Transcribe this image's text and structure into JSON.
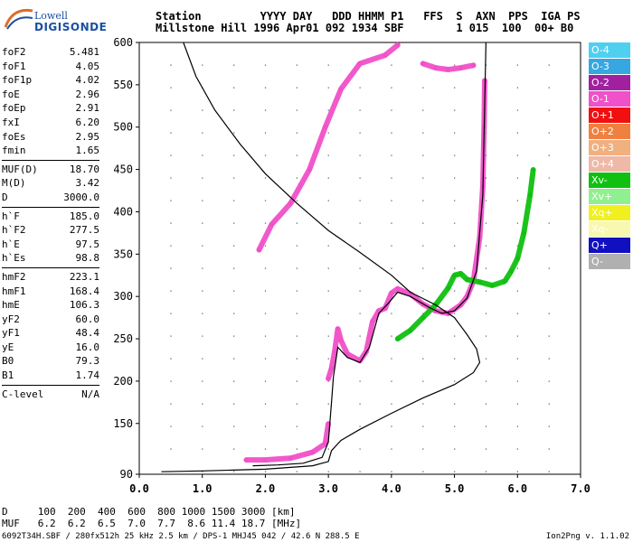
{
  "logo": {
    "line1": "Lowell",
    "line2": "DIGISONDE"
  },
  "header": {
    "row1": "Station         YYYY DAY   DDD HHMM P1   FFS  S  AXN  PPS  IGA PS",
    "row2": "Millstone Hill 1996 Apr01 092 1934 SBF        1 015  100  00+ B0"
  },
  "params": [
    {
      "k": "foF2",
      "v": "5.481"
    },
    {
      "k": "foF1",
      "v": "4.05"
    },
    {
      "k": "foF1p",
      "v": "4.02"
    },
    {
      "k": "foE",
      "v": "2.96"
    },
    {
      "k": "foEp",
      "v": "2.91"
    },
    {
      "k": "fxI",
      "v": "6.20"
    },
    {
      "k": "foEs",
      "v": "2.95"
    },
    {
      "k": "fmin",
      "v": "1.65"
    },
    {
      "sep": true
    },
    {
      "k": "MUF(D)",
      "v": "18.70"
    },
    {
      "k": "M(D)",
      "v": "3.42"
    },
    {
      "k": "D",
      "v": "3000.0"
    },
    {
      "sep": true
    },
    {
      "k": "h`F",
      "v": "185.0"
    },
    {
      "k": "h`F2",
      "v": "277.5"
    },
    {
      "k": "h`E",
      "v": "97.5"
    },
    {
      "k": "h`Es",
      "v": "98.8"
    },
    {
      "sep": true
    },
    {
      "k": "hmF2",
      "v": "223.1"
    },
    {
      "k": "hmF1",
      "v": "168.4"
    },
    {
      "k": "hmE",
      "v": "106.3"
    },
    {
      "k": "yF2",
      "v": "60.0"
    },
    {
      "k": "yF1",
      "v": "48.4"
    },
    {
      "k": "yE",
      "v": "16.0"
    },
    {
      "k": "B0",
      "v": "79.3"
    },
    {
      "k": "B1",
      "v": "1.74"
    },
    {
      "sep": true
    },
    {
      "k": "C-level",
      "v": "N/A"
    }
  ],
  "legend": [
    {
      "label": "O-4",
      "color": "#4fd0f0"
    },
    {
      "label": "O-3",
      "color": "#36a7e0"
    },
    {
      "label": "O-2",
      "color": "#a020a0"
    },
    {
      "label": "O-1",
      "color": "#f050c8"
    },
    {
      "label": "O+1",
      "color": "#f01010"
    },
    {
      "label": "O+2",
      "color": "#f08040"
    },
    {
      "label": "O+3",
      "color": "#f0b080"
    },
    {
      "label": "O+4",
      "color": "#f0b8a8"
    },
    {
      "label": "Xv-",
      "color": "#10c010"
    },
    {
      "label": "Xv+",
      "color": "#90f090"
    },
    {
      "label": "Xq+",
      "color": "#f0f020"
    },
    {
      "label": "Xq-",
      "color": "#f8f8b0"
    },
    {
      "label": "Q+",
      "color": "#1010c0"
    },
    {
      "label": "Q-",
      "color": "#b0b0b0"
    }
  ],
  "bottom": {
    "row1": "D     100  200  400  600  800 1000 1500 3000 [km]",
    "row2": "MUF   6.2  6.2  6.5  7.0  7.7  8.6 11.4 18.7 [MHz]"
  },
  "footer": {
    "left": "6092T34H.SBF / 280fx512h 25 kHz 2.5 km / DPS-1 MHJ45 042 / 42.6 N 288.5 E",
    "right": "Ion2Png v. 1.1.02"
  },
  "chart_data": {
    "type": "scatter",
    "xlim": [
      0,
      7
    ],
    "ylim": [
      90,
      600
    ],
    "xticks": [
      "0.0",
      "1.0",
      "2.0",
      "3.0",
      "4.0",
      "5.0",
      "6.0",
      "7.0"
    ],
    "yticks": [
      "90",
      "150",
      "200",
      "250",
      "300",
      "350",
      "400",
      "450",
      "500",
      "550",
      "600"
    ],
    "grid": true,
    "series": [
      {
        "name": "O-1",
        "color": "#f050c8",
        "segments": [
          [
            [
              1.7,
              107
            ],
            [
              2.0,
              107
            ],
            [
              2.4,
              109
            ],
            [
              2.75,
              116
            ],
            [
              2.95,
              126
            ],
            [
              3.0,
              150
            ]
          ],
          [
            [
              3.0,
              203
            ],
            [
              3.05,
              215
            ],
            [
              3.1,
              235
            ],
            [
              3.15,
              262
            ],
            [
              3.2,
              248
            ],
            [
              3.3,
              232
            ],
            [
              3.5,
              224
            ],
            [
              3.6,
              235
            ],
            [
              3.7,
              270
            ],
            [
              3.8,
              283
            ],
            [
              3.9,
              286
            ],
            [
              4.0,
              304
            ],
            [
              4.1,
              309
            ],
            [
              4.3,
              303
            ],
            [
              4.5,
              291
            ],
            [
              4.7,
              283
            ],
            [
              4.9,
              280
            ],
            [
              5.0,
              285
            ],
            [
              5.1,
              290
            ],
            [
              5.2,
              300
            ],
            [
              5.3,
              318
            ],
            [
              5.4,
              370
            ],
            [
              5.45,
              430
            ],
            [
              5.47,
              500
            ],
            [
              5.48,
              555
            ]
          ],
          [
            [
              1.9,
              355
            ],
            [
              2.1,
              385
            ],
            [
              2.4,
              410
            ],
            [
              2.7,
              450
            ],
            [
              2.95,
              500
            ],
            [
              3.2,
              545
            ],
            [
              3.5,
              575
            ],
            [
              3.9,
              585
            ],
            [
              4.1,
              597
            ]
          ],
          [
            [
              4.5,
              575
            ],
            [
              4.7,
              570
            ],
            [
              4.9,
              568
            ],
            [
              5.1,
              570
            ],
            [
              5.3,
              573
            ]
          ]
        ]
      },
      {
        "name": "Xv-",
        "color": "#10c010",
        "segments": [
          [
            [
              4.1,
              250
            ],
            [
              4.3,
              260
            ],
            [
              4.5,
              275
            ],
            [
              4.7,
              290
            ],
            [
              4.9,
              310
            ],
            [
              5.0,
              325
            ],
            [
              5.1,
              327
            ],
            [
              5.2,
              320
            ],
            [
              5.4,
              317
            ],
            [
              5.6,
              313
            ],
            [
              5.8,
              318
            ],
            [
              5.9,
              330
            ],
            [
              6.0,
              345
            ],
            [
              6.1,
              375
            ],
            [
              6.2,
              420
            ],
            [
              6.25,
              450
            ]
          ]
        ]
      },
      {
        "name": "profile",
        "color": "#000000",
        "segments": [
          [
            [
              0.7,
              600
            ],
            [
              0.9,
              560
            ],
            [
              1.2,
              520
            ],
            [
              1.6,
              480
            ],
            [
              2.0,
              445
            ],
            [
              2.5,
              410
            ],
            [
              3.0,
              378
            ],
            [
              3.5,
              352
            ],
            [
              4.0,
              325
            ],
            [
              4.3,
              305
            ],
            [
              4.7,
              290
            ],
            [
              5.0,
              275
            ],
            [
              5.2,
              255
            ],
            [
              5.35,
              238
            ],
            [
              5.4,
              222
            ],
            [
              5.3,
              210
            ],
            [
              5.0,
              196
            ],
            [
              4.5,
              180
            ],
            [
              4.0,
              162
            ],
            [
              3.5,
              143
            ],
            [
              3.2,
              130
            ],
            [
              3.05,
              118
            ],
            [
              3.0,
              105
            ],
            [
              2.75,
              100
            ],
            [
              2.0,
              96
            ],
            [
              1.0,
              94
            ],
            [
              0.35,
              93
            ]
          ],
          [
            [
              1.8,
              100
            ],
            [
              2.2,
              101
            ],
            [
              2.6,
              103
            ],
            [
              2.9,
              110
            ],
            [
              3.0,
              128
            ],
            [
              3.05,
              175
            ],
            [
              3.08,
              205
            ],
            [
              3.15,
              240
            ],
            [
              3.3,
              228
            ],
            [
              3.5,
              222
            ],
            [
              3.65,
              240
            ],
            [
              3.8,
              280
            ],
            [
              3.95,
              292
            ],
            [
              4.1,
              305
            ],
            [
              4.3,
              300
            ],
            [
              4.6,
              287
            ],
            [
              4.8,
              280
            ],
            [
              5.0,
              283
            ],
            [
              5.2,
              298
            ],
            [
              5.35,
              330
            ],
            [
              5.45,
              420
            ],
            [
              5.5,
              600
            ]
          ]
        ]
      }
    ]
  }
}
